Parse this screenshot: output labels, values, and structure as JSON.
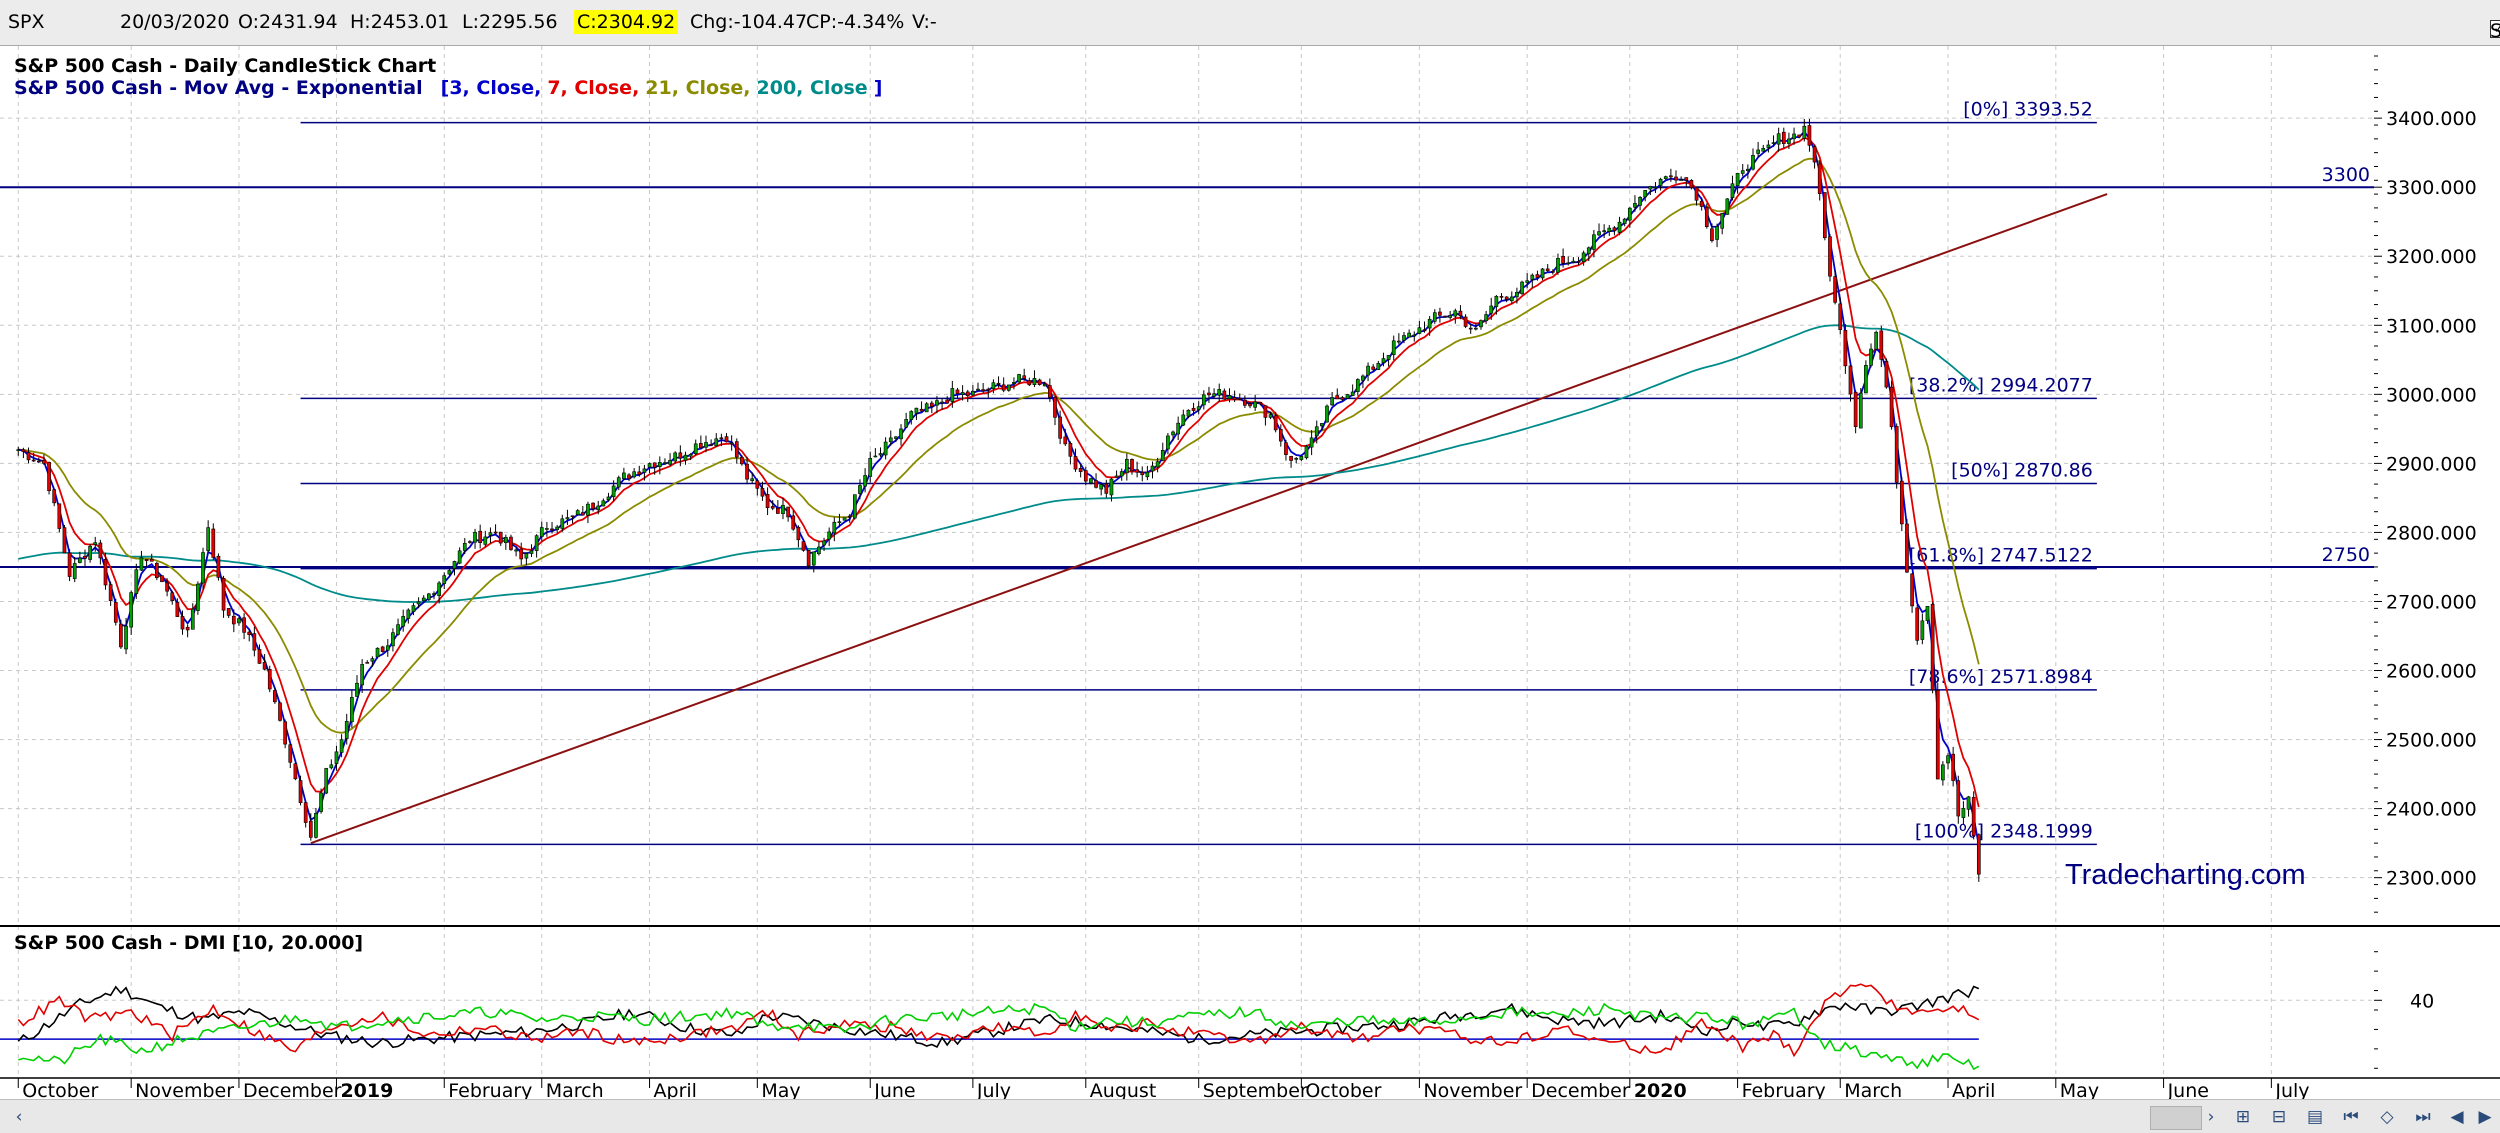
{
  "topbar": {
    "symbol": "SPX",
    "date": "20/03/2020",
    "open": "O:2431.94",
    "high": "H:2453.01",
    "low": "L:2295.56",
    "close": "C:2304.92",
    "change": "Chg:-104.47",
    "change_pct": "CP:-4.34%",
    "volume": "V:-",
    "show_last_label": "Show Last",
    "show_last_checked": true
  },
  "chart_data": [
    {
      "type": "candlestick",
      "title": "S&P 500 Cash - Daily CandleStick Chart",
      "subtitle_prefix": "S&P 500 Cash - Mov Avg - Exponential",
      "ma_params": [
        {
          "text": "[3, Close,",
          "color": "#0000c8"
        },
        {
          "text": "7, Close,",
          "color": "#e00000"
        },
        {
          "text": "21, Close,",
          "color": "#8b8b00"
        },
        {
          "text": "200, Close",
          "color": "#008b8b"
        },
        {
          "text": "]",
          "color": "#0000c8"
        }
      ],
      "watermark": "Tradecharting.com",
      "ylim": [
        2230,
        3490
      ],
      "yticks": [
        {
          "v": 3400,
          "label": "3400.000"
        },
        {
          "v": 3300,
          "label": "3300.000"
        },
        {
          "v": 3200,
          "label": "3200.000"
        },
        {
          "v": 3100,
          "label": "3100.000"
        },
        {
          "v": 3000,
          "label": "3000.000"
        },
        {
          "v": 2900,
          "label": "2900.000"
        },
        {
          "v": 2800,
          "label": "2800.000"
        },
        {
          "v": 2700,
          "label": "2700.000"
        },
        {
          "v": 2600,
          "label": "2600.000"
        },
        {
          "v": 2500,
          "label": "2500.000"
        },
        {
          "v": 2400,
          "label": "2400.000"
        },
        {
          "v": 2300,
          "label": "2300.000"
        }
      ],
      "months": [
        {
          "label": "October",
          "t": 0,
          "bold": false
        },
        {
          "label": "November",
          "t": 22,
          "bold": false
        },
        {
          "label": "December",
          "t": 43,
          "bold": false
        },
        {
          "label": "2019",
          "t": 62,
          "bold": true
        },
        {
          "label": "February",
          "t": 83,
          "bold": false
        },
        {
          "label": "March",
          "t": 102,
          "bold": false
        },
        {
          "label": "April",
          "t": 123,
          "bold": false
        },
        {
          "label": "May",
          "t": 144,
          "bold": false
        },
        {
          "label": "June",
          "t": 166,
          "bold": false
        },
        {
          "label": "July",
          "t": 186,
          "bold": false
        },
        {
          "label": "August",
          "t": 208,
          "bold": false
        },
        {
          "label": "September",
          "t": 230,
          "bold": false
        },
        {
          "label": "October",
          "t": 250,
          "bold": false
        },
        {
          "label": "November",
          "t": 273,
          "bold": false
        },
        {
          "label": "December",
          "t": 294,
          "bold": false
        },
        {
          "label": "2020",
          "t": 314,
          "bold": true
        },
        {
          "label": "February",
          "t": 335,
          "bold": false
        },
        {
          "label": "March",
          "t": 355,
          "bold": false
        },
        {
          "label": "April",
          "t": 376,
          "bold": false
        },
        {
          "label": "May",
          "t": 397,
          "bold": false
        },
        {
          "label": "June",
          "t": 418,
          "bold": false
        },
        {
          "label": "July",
          "t": 439,
          "bold": false
        }
      ],
      "x_range": [
        -2,
        459
      ],
      "fib_levels": [
        {
          "label": "[0%] 3393.52",
          "v": 3393.52
        },
        {
          "label": "[38.2%] 2994.2077",
          "v": 2994.2077
        },
        {
          "label": "[50%] 2870.86",
          "v": 2870.86
        },
        {
          "label": "[61.8%] 2747.5122",
          "v": 2747.5122
        },
        {
          "label": "[78.6%] 2571.8984",
          "v": 2571.8984
        },
        {
          "label": "[100%] 2348.1999",
          "v": 2348.1999
        }
      ],
      "fib_x_range": [
        55,
        405
      ],
      "hlines": [
        {
          "label": "3300",
          "v": 3300
        },
        {
          "label": "2750",
          "v": 2750
        }
      ],
      "trendline": {
        "t1": 57,
        "v1": 2350,
        "t2": 407,
        "v2": 3290
      },
      "price_keypoints": [
        [
          0,
          2920
        ],
        [
          5,
          2900
        ],
        [
          10,
          2740
        ],
        [
          15,
          2790
        ],
        [
          20,
          2640
        ],
        [
          24,
          2770
        ],
        [
          28,
          2730
        ],
        [
          33,
          2650
        ],
        [
          37,
          2810
        ],
        [
          40,
          2690
        ],
        [
          44,
          2660
        ],
        [
          48,
          2600
        ],
        [
          52,
          2500
        ],
        [
          57,
          2360
        ],
        [
          60,
          2450
        ],
        [
          63,
          2500
        ],
        [
          67,
          2610
        ],
        [
          72,
          2640
        ],
        [
          76,
          2680
        ],
        [
          80,
          2710
        ],
        [
          84,
          2750
        ],
        [
          88,
          2790
        ],
        [
          93,
          2800
        ],
        [
          98,
          2760
        ],
        [
          103,
          2810
        ],
        [
          108,
          2820
        ],
        [
          112,
          2840
        ],
        [
          118,
          2880
        ],
        [
          123,
          2900
        ],
        [
          128,
          2910
        ],
        [
          133,
          2930
        ],
        [
          138,
          2940
        ],
        [
          142,
          2880
        ],
        [
          146,
          2840
        ],
        [
          150,
          2830
        ],
        [
          154,
          2760
        ],
        [
          158,
          2800
        ],
        [
          162,
          2830
        ],
        [
          166,
          2900
        ],
        [
          170,
          2930
        ],
        [
          174,
          2970
        ],
        [
          178,
          2980
        ],
        [
          182,
          3000
        ],
        [
          186,
          3000
        ],
        [
          190,
          3010
        ],
        [
          195,
          3020
        ],
        [
          200,
          3020
        ],
        [
          204,
          2920
        ],
        [
          208,
          2880
        ],
        [
          212,
          2860
        ],
        [
          216,
          2900
        ],
        [
          220,
          2880
        ],
        [
          224,
          2940
        ],
        [
          228,
          2980
        ],
        [
          232,
          3000
        ],
        [
          236,
          3000
        ],
        [
          240,
          2990
        ],
        [
          244,
          2970
        ],
        [
          248,
          2900
        ],
        [
          252,
          2930
        ],
        [
          256,
          2990
        ],
        [
          260,
          3010
        ],
        [
          264,
          3040
        ],
        [
          268,
          3070
        ],
        [
          272,
          3090
        ],
        [
          276,
          3110
        ],
        [
          280,
          3120
        ],
        [
          284,
          3090
        ],
        [
          288,
          3140
        ],
        [
          292,
          3150
        ],
        [
          296,
          3170
        ],
        [
          300,
          3190
        ],
        [
          304,
          3200
        ],
        [
          308,
          3230
        ],
        [
          312,
          3250
        ],
        [
          316,
          3290
        ],
        [
          320,
          3310
        ],
        [
          324,
          3320
        ],
        [
          327,
          3290
        ],
        [
          330,
          3230
        ],
        [
          333,
          3280
        ],
        [
          336,
          3330
        ],
        [
          340,
          3350
        ],
        [
          343,
          3370
        ],
        [
          346,
          3375
        ],
        [
          348,
          3386
        ],
        [
          350,
          3340
        ],
        [
          352,
          3225
        ],
        [
          354,
          3130
        ],
        [
          356,
          3050
        ],
        [
          358,
          2960
        ],
        [
          360,
          3050
        ],
        [
          362,
          3090
        ],
        [
          364,
          3010
        ],
        [
          366,
          2880
        ],
        [
          368,
          2750
        ],
        [
          370,
          2650
        ],
        [
          372,
          2700
        ],
        [
          374,
          2450
        ],
        [
          376,
          2480
        ],
        [
          378,
          2390
        ],
        [
          380,
          2410
        ],
        [
          382,
          2305
        ]
      ]
    },
    {
      "type": "line",
      "title": "S&P 500 Cash - DMI [10, 20.000]",
      "ylim": [
        0,
        70
      ],
      "yticks": [
        {
          "v": 40,
          "label": "40"
        }
      ],
      "threshold": 20,
      "series": [
        {
          "color": "#000000",
          "keypoints": [
            [
              0,
              18
            ],
            [
              6,
              28
            ],
            [
              12,
              38
            ],
            [
              20,
              46
            ],
            [
              28,
              36
            ],
            [
              36,
              30
            ],
            [
              44,
              34
            ],
            [
              52,
              28
            ],
            [
              60,
              22
            ],
            [
              70,
              18
            ],
            [
              80,
              20
            ],
            [
              90,
              22
            ],
            [
              100,
              24
            ],
            [
              110,
              28
            ],
            [
              120,
              34
            ],
            [
              130,
              26
            ],
            [
              140,
              22
            ],
            [
              146,
              32
            ],
            [
              152,
              30
            ],
            [
              160,
              26
            ],
            [
              170,
              22
            ],
            [
              180,
              18
            ],
            [
              190,
              24
            ],
            [
              200,
              30
            ],
            [
              210,
              28
            ],
            [
              220,
              24
            ],
            [
              230,
              20
            ],
            [
              240,
              22
            ],
            [
              250,
              24
            ],
            [
              260,
              26
            ],
            [
              270,
              28
            ],
            [
              280,
              32
            ],
            [
              290,
              36
            ],
            [
              300,
              30
            ],
            [
              310,
              28
            ],
            [
              320,
              32
            ],
            [
              330,
              24
            ],
            [
              336,
              30
            ],
            [
              340,
              26
            ],
            [
              346,
              28
            ],
            [
              350,
              34
            ],
            [
              356,
              38
            ],
            [
              362,
              34
            ],
            [
              368,
              36
            ],
            [
              374,
              40
            ],
            [
              382,
              46
            ]
          ]
        },
        {
          "color": "#e00000",
          "keypoints": [
            [
              0,
              28
            ],
            [
              8,
              40
            ],
            [
              14,
              30
            ],
            [
              22,
              34
            ],
            [
              30,
              22
            ],
            [
              38,
              36
            ],
            [
              46,
              24
            ],
            [
              54,
              14
            ],
            [
              60,
              26
            ],
            [
              70,
              32
            ],
            [
              80,
              22
            ],
            [
              90,
              26
            ],
            [
              100,
              20
            ],
            [
              110,
              24
            ],
            [
              120,
              18
            ],
            [
              130,
              22
            ],
            [
              140,
              26
            ],
            [
              146,
              34
            ],
            [
              152,
              22
            ],
            [
              160,
              28
            ],
            [
              170,
              26
            ],
            [
              180,
              20
            ],
            [
              190,
              26
            ],
            [
              200,
              22
            ],
            [
              206,
              34
            ],
            [
              212,
              24
            ],
            [
              220,
              28
            ],
            [
              230,
              22
            ],
            [
              240,
              18
            ],
            [
              250,
              26
            ],
            [
              260,
              20
            ],
            [
              270,
              26
            ],
            [
              280,
              22
            ],
            [
              290,
              18
            ],
            [
              300,
              26
            ],
            [
              310,
              18
            ],
            [
              320,
              14
            ],
            [
              328,
              28
            ],
            [
              336,
              16
            ],
            [
              342,
              22
            ],
            [
              346,
              14
            ],
            [
              352,
              38
            ],
            [
              358,
              50
            ],
            [
              364,
              40
            ],
            [
              370,
              34
            ],
            [
              378,
              36
            ],
            [
              382,
              30
            ]
          ]
        },
        {
          "color": "#00d000",
          "keypoints": [
            [
              0,
              12
            ],
            [
              8,
              8
            ],
            [
              16,
              20
            ],
            [
              24,
              14
            ],
            [
              32,
              20
            ],
            [
              40,
              24
            ],
            [
              48,
              28
            ],
            [
              56,
              32
            ],
            [
              62,
              26
            ],
            [
              72,
              30
            ],
            [
              82,
              32
            ],
            [
              92,
              34
            ],
            [
              102,
              30
            ],
            [
              112,
              32
            ],
            [
              122,
              30
            ],
            [
              132,
              32
            ],
            [
              140,
              34
            ],
            [
              146,
              26
            ],
            [
              152,
              28
            ],
            [
              160,
              24
            ],
            [
              170,
              30
            ],
            [
              180,
              32
            ],
            [
              190,
              34
            ],
            [
              200,
              36
            ],
            [
              206,
              26
            ],
            [
              212,
              30
            ],
            [
              220,
              28
            ],
            [
              230,
              32
            ],
            [
              240,
              34
            ],
            [
              250,
              26
            ],
            [
              260,
              30
            ],
            [
              270,
              28
            ],
            [
              280,
              30
            ],
            [
              290,
              34
            ],
            [
              300,
              32
            ],
            [
              310,
              36
            ],
            [
              320,
              30
            ],
            [
              328,
              32
            ],
            [
              336,
              28
            ],
            [
              342,
              30
            ],
            [
              346,
              34
            ],
            [
              352,
              18
            ],
            [
              358,
              14
            ],
            [
              364,
              10
            ],
            [
              370,
              8
            ],
            [
              376,
              10
            ],
            [
              382,
              6
            ]
          ]
        }
      ]
    }
  ]
}
